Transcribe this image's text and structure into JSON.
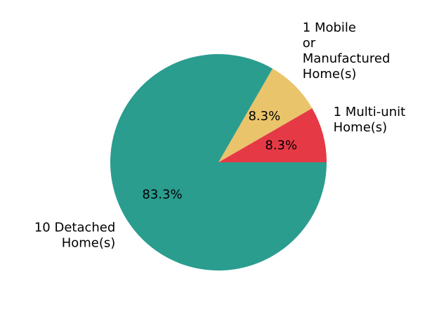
{
  "chart_data": {
    "type": "pie",
    "title": "",
    "slices": [
      {
        "label_lines": [
          "1 Multi-unit",
          "Home(s)"
        ],
        "value": 1,
        "percent_label": "8.3%",
        "color": "#e63946"
      },
      {
        "label_lines": [
          "1 Mobile",
          "or",
          "Manufactured",
          "Home(s)"
        ],
        "value": 1,
        "percent_label": "8.3%",
        "color": "#e9c46a"
      },
      {
        "label_lines": [
          "10 Detached",
          "Home(s)"
        ],
        "value": 10,
        "percent_label": "83.3%",
        "color": "#2a9d8f"
      }
    ],
    "start_angle_deg": 0,
    "direction": "counterclockwise"
  }
}
